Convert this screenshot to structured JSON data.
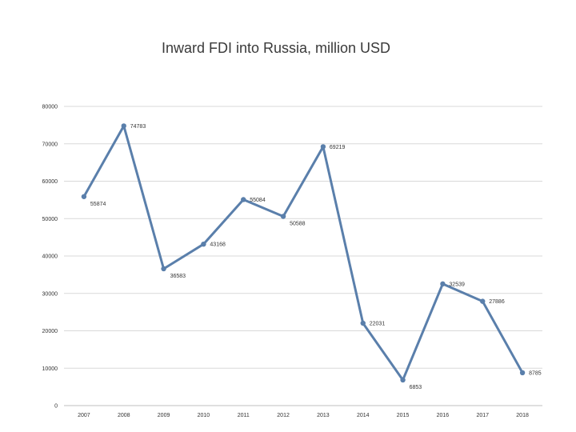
{
  "chart_data": {
    "type": "line",
    "title": "Inward FDI into Russia, million USD",
    "xlabel": "",
    "ylabel": "",
    "categories": [
      "2007",
      "2008",
      "2009",
      "2010",
      "2011",
      "2012",
      "2013",
      "2014",
      "2015",
      "2016",
      "2017",
      "2018"
    ],
    "series": [
      {
        "values": [
          55874,
          74783,
          36583,
          43168,
          55084,
          50588,
          69219,
          22031,
          6853,
          32539,
          27886,
          8785
        ],
        "labels": [
          "55874",
          "74783",
          "36583",
          "43168",
          "55084",
          "50588",
          "69219",
          "22031",
          "6853",
          "32539",
          "27886",
          "8785"
        ]
      }
    ],
    "ylim": [
      0,
      80000
    ],
    "yticks": [
      "0",
      "10000",
      "20000",
      "30000",
      "40000",
      "50000",
      "60000",
      "70000",
      "80000"
    ],
    "grid": true,
    "legend": "none",
    "colors": {
      "line": "#5a7fab",
      "grid": "#d9d9d9",
      "axis": "#bfbfbf"
    }
  }
}
